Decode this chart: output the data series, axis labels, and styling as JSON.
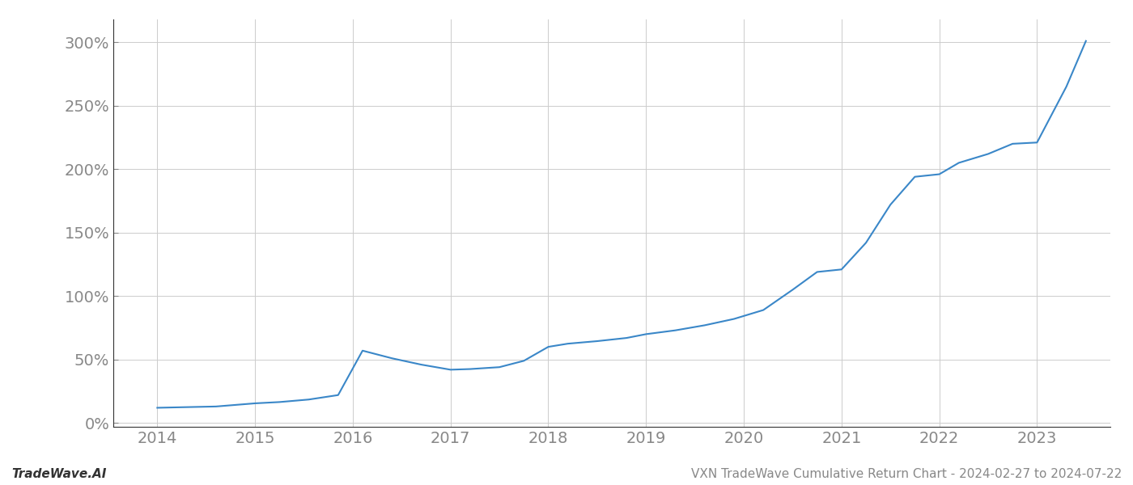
{
  "x_years": [
    2014.0,
    2014.3,
    2014.6,
    2015.0,
    2015.25,
    2015.55,
    2015.85,
    2016.1,
    2016.4,
    2016.7,
    2017.0,
    2017.2,
    2017.5,
    2017.75,
    2018.0,
    2018.2,
    2018.5,
    2018.8,
    2019.0,
    2019.3,
    2019.6,
    2019.9,
    2020.2,
    2020.5,
    2020.75,
    2021.0,
    2021.25,
    2021.5,
    2021.75,
    2022.0,
    2022.2,
    2022.5,
    2022.75,
    2023.0,
    2023.3,
    2023.5
  ],
  "y_values": [
    0.12,
    0.125,
    0.13,
    0.155,
    0.165,
    0.185,
    0.22,
    0.57,
    0.51,
    0.46,
    0.42,
    0.425,
    0.44,
    0.49,
    0.6,
    0.625,
    0.645,
    0.67,
    0.7,
    0.73,
    0.77,
    0.82,
    0.89,
    1.05,
    1.19,
    1.21,
    1.42,
    1.72,
    1.94,
    1.96,
    2.05,
    2.12,
    2.2,
    2.21,
    2.65,
    3.01
  ],
  "line_color": "#3a87c8",
  "line_width": 1.5,
  "x_ticks": [
    2014,
    2015,
    2016,
    2017,
    2018,
    2019,
    2020,
    2021,
    2022,
    2023
  ],
  "x_tick_labels": [
    "2014",
    "2015",
    "2016",
    "2017",
    "2018",
    "2019",
    "2020",
    "2021",
    "2022",
    "2023"
  ],
  "y_ticks": [
    0.0,
    0.5,
    1.0,
    1.5,
    2.0,
    2.5,
    3.0
  ],
  "y_tick_labels": [
    "0%",
    "50%",
    "100%",
    "150%",
    "200%",
    "250%",
    "300%"
  ],
  "ylim": [
    -0.03,
    3.18
  ],
  "xlim": [
    2013.55,
    2023.75
  ],
  "grid_color": "#cccccc",
  "grid_linewidth": 0.7,
  "background_color": "#ffffff",
  "text_color": "#888888",
  "tick_fontsize": 14,
  "footer_left": "TradeWave.AI",
  "footer_right": "VXN TradeWave Cumulative Return Chart - 2024-02-27 to 2024-07-22",
  "footer_fontsize": 11,
  "left_spine_color": "#333333",
  "bottom_spine_color": "#333333"
}
